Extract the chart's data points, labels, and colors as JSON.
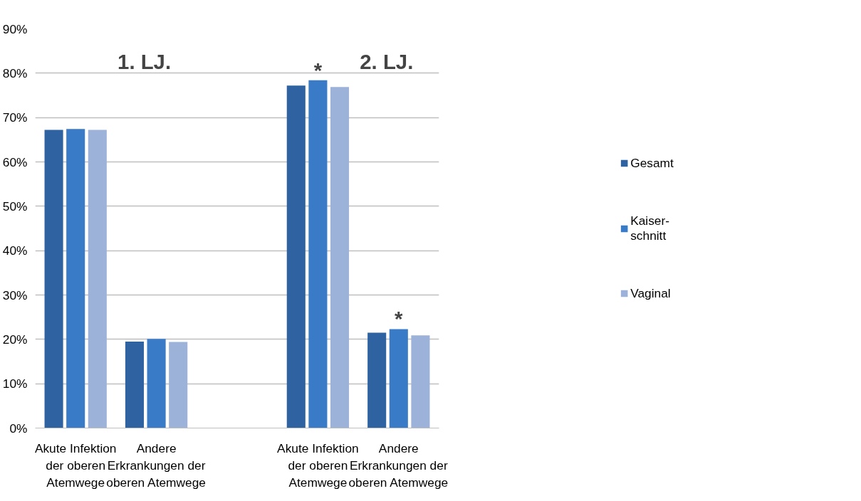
{
  "chart_data": {
    "type": "bar",
    "categories": [
      "Akute Infektion der oberen Atemwege",
      "Andere Erkrankungen der oberen Atemwege",
      null,
      "Akute Infektion der oberen Atemwege",
      "Andere Erkrankungen der oberen Atemwege"
    ],
    "series": [
      {
        "name": "Gesamt",
        "color": "#2e62a0",
        "values": [
          67.2,
          19.5,
          null,
          77.2,
          21.5
        ]
      },
      {
        "name": "Kaiser-\nschnitt",
        "color": "#3a7bc8",
        "values": [
          67.4,
          20.1,
          null,
          78.4,
          22.3
        ]
      },
      {
        "name": "Vaginal",
        "color": "#9db2d8",
        "values": [
          67.2,
          19.4,
          null,
          76.9,
          20.9
        ]
      }
    ],
    "ylim": [
      0,
      90
    ],
    "yticks": [
      {
        "value": 0,
        "label": "0%"
      },
      {
        "value": 10,
        "label": "10%"
      },
      {
        "value": 20,
        "label": "20%"
      },
      {
        "value": 30,
        "label": "30%"
      },
      {
        "value": 40,
        "label": "40%"
      },
      {
        "value": 50,
        "label": "50%"
      },
      {
        "value": 60,
        "label": "60%"
      },
      {
        "value": 70,
        "label": "70%"
      },
      {
        "value": 80,
        "label": "80%"
      },
      {
        "value": 90,
        "label": "90%"
      }
    ],
    "annotations": [
      "1. LJ.",
      "2. LJ.",
      "*",
      "*"
    ],
    "grid": "y",
    "legend": "right"
  }
}
